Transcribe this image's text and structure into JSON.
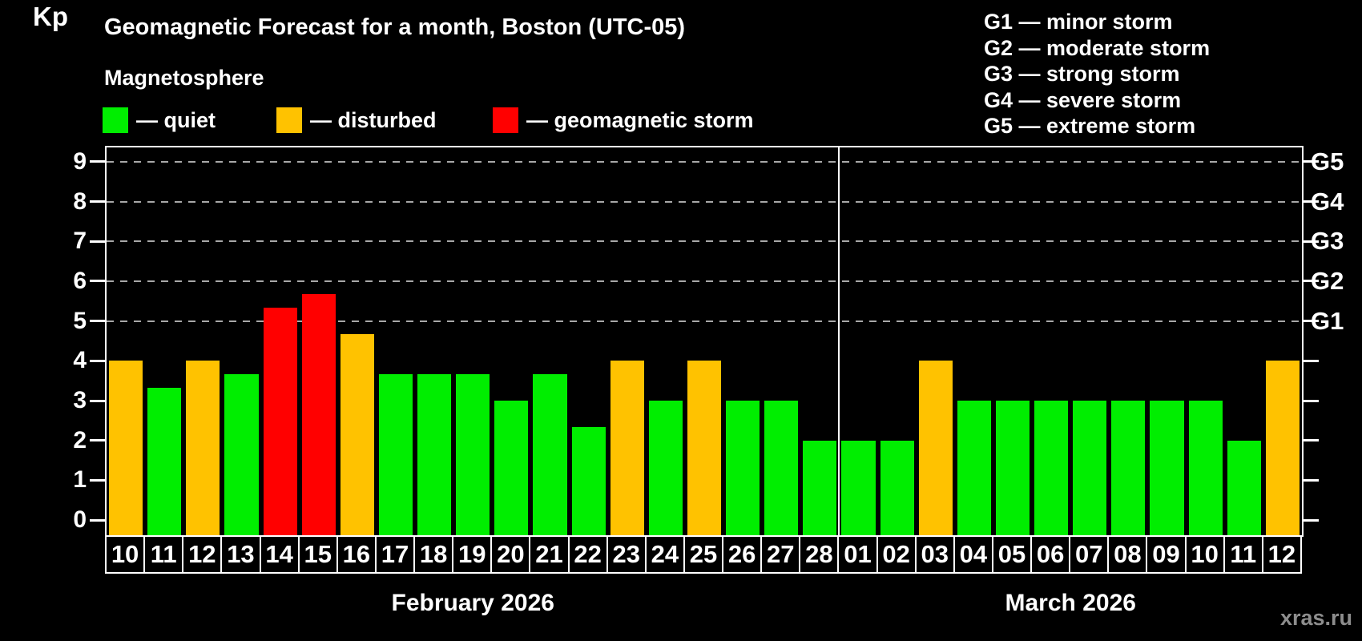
{
  "title": "Geomagnetic Forecast for a month, Boston (UTC-05)",
  "subtitle": "Magnetosphere",
  "legend": [
    {
      "id": "quiet",
      "label": "— quiet",
      "color": "#00ee00"
    },
    {
      "id": "disturbed",
      "label": "— disturbed",
      "color": "#ffc200"
    },
    {
      "id": "storm",
      "label": "— geomagnetic storm",
      "color": "#ff0000"
    }
  ],
  "g_scale_legend": [
    "G1 — minor storm",
    "G2 — moderate storm",
    "G3 — strong storm",
    "G4 — severe storm",
    "G5 — extreme storm"
  ],
  "watermark": "xras.ru",
  "colors": {
    "quiet": "#00ee00",
    "disturbed": "#ffc200",
    "storm": "#ff0000",
    "grid": "#a8a8a8",
    "axis": "#ffffff",
    "watermark": "#8d8d8d"
  },
  "chart_data": {
    "type": "bar",
    "title": "Geomagnetic Forecast for a month, Boston (UTC-05)",
    "ylabel": "Kp",
    "ylim": [
      -0.38,
      9.36
    ],
    "yticks": [
      0,
      1,
      2,
      3,
      4,
      5,
      6,
      7,
      8,
      9
    ],
    "gridlines_kp": [
      5,
      6,
      7,
      8,
      9
    ],
    "grid": "dashed, only at storm levels G1-G5",
    "legend_position": "top",
    "right_axis": [
      {
        "kp": 5,
        "label": "G1"
      },
      {
        "kp": 6,
        "label": "G2"
      },
      {
        "kp": 7,
        "label": "G3"
      },
      {
        "kp": 8,
        "label": "G4"
      },
      {
        "kp": 9,
        "label": "G5"
      }
    ],
    "months": [
      {
        "label": "February 2026",
        "bars": [
          {
            "day": "10",
            "kp": 4,
            "status": "disturbed"
          },
          {
            "day": "11",
            "kp": 3.33,
            "status": "quiet"
          },
          {
            "day": "12",
            "kp": 4,
            "status": "disturbed"
          },
          {
            "day": "13",
            "kp": 3.67,
            "status": "quiet"
          },
          {
            "day": "14",
            "kp": 5.33,
            "status": "storm"
          },
          {
            "day": "15",
            "kp": 5.67,
            "status": "storm"
          },
          {
            "day": "16",
            "kp": 4.67,
            "status": "disturbed"
          },
          {
            "day": "17",
            "kp": 3.67,
            "status": "quiet"
          },
          {
            "day": "18",
            "kp": 3.67,
            "status": "quiet"
          },
          {
            "day": "19",
            "kp": 3.67,
            "status": "quiet"
          },
          {
            "day": "20",
            "kp": 3,
            "status": "quiet"
          },
          {
            "day": "21",
            "kp": 3.67,
            "status": "quiet"
          },
          {
            "day": "22",
            "kp": 2.33,
            "status": "quiet"
          },
          {
            "day": "23",
            "kp": 4,
            "status": "disturbed"
          },
          {
            "day": "24",
            "kp": 3,
            "status": "quiet"
          },
          {
            "day": "25",
            "kp": 4,
            "status": "disturbed"
          },
          {
            "day": "26",
            "kp": 3,
            "status": "quiet"
          },
          {
            "day": "27",
            "kp": 3,
            "status": "quiet"
          },
          {
            "day": "28",
            "kp": 2,
            "status": "quiet"
          }
        ]
      },
      {
        "label": "March 2026",
        "bars": [
          {
            "day": "01",
            "kp": 2,
            "status": "quiet"
          },
          {
            "day": "02",
            "kp": 2,
            "status": "quiet"
          },
          {
            "day": "03",
            "kp": 4,
            "status": "disturbed"
          },
          {
            "day": "04",
            "kp": 3,
            "status": "quiet"
          },
          {
            "day": "05",
            "kp": 3,
            "status": "quiet"
          },
          {
            "day": "06",
            "kp": 3,
            "status": "quiet"
          },
          {
            "day": "07",
            "kp": 3,
            "status": "quiet"
          },
          {
            "day": "08",
            "kp": 3,
            "status": "quiet"
          },
          {
            "day": "09",
            "kp": 3,
            "status": "quiet"
          },
          {
            "day": "10",
            "kp": 3,
            "status": "quiet"
          },
          {
            "day": "11",
            "kp": 2,
            "status": "quiet"
          },
          {
            "day": "12",
            "kp": 4,
            "status": "disturbed"
          }
        ]
      }
    ]
  }
}
